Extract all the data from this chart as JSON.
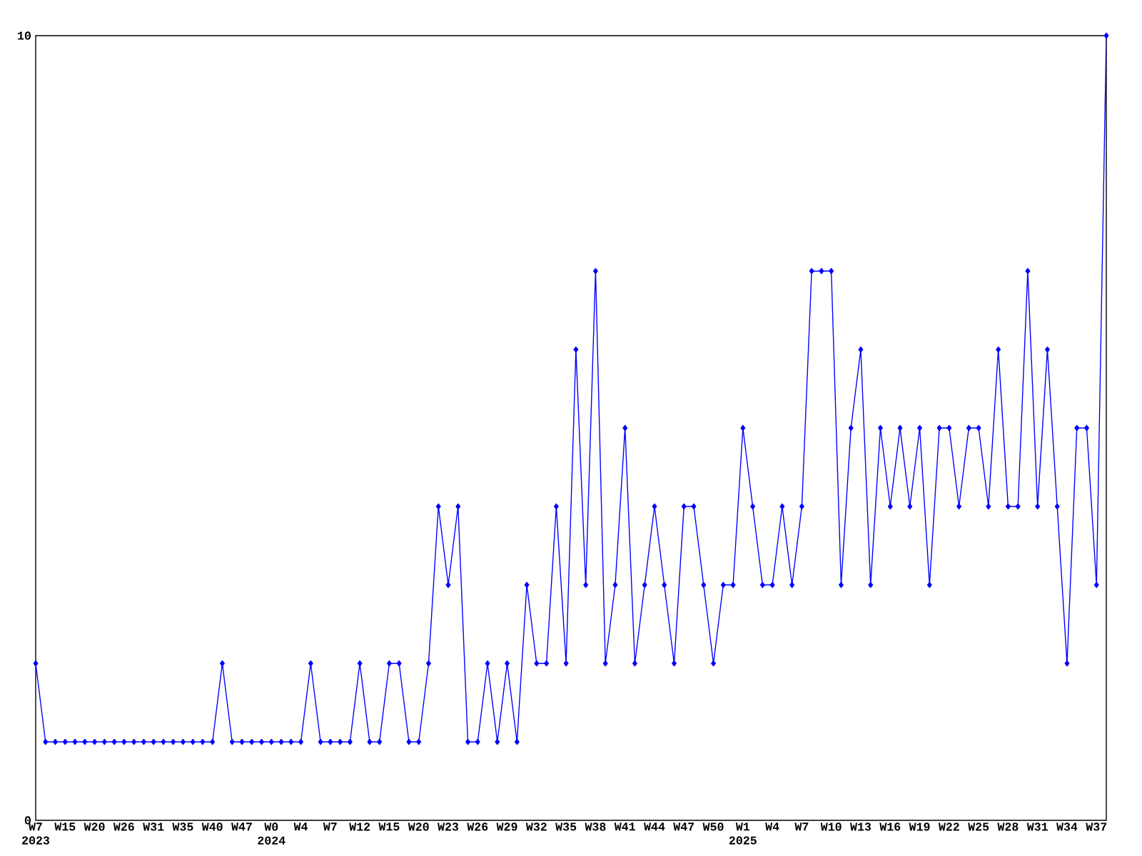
{
  "chart_data": {
    "type": "line",
    "categories": [
      "W7 2023",
      null,
      null,
      "W15",
      null,
      null,
      "W20",
      null,
      null,
      "W26",
      null,
      null,
      "W31",
      null,
      null,
      "W35",
      null,
      null,
      "W40",
      null,
      null,
      "W47",
      null,
      null,
      "W0 2024",
      null,
      null,
      "W4",
      null,
      null,
      "W7",
      null,
      null,
      "W12",
      null,
      null,
      "W15",
      null,
      null,
      "W20",
      null,
      null,
      "W23",
      null,
      null,
      "W26",
      null,
      null,
      "W29",
      null,
      null,
      "W32",
      null,
      null,
      "W35",
      null,
      null,
      "W38",
      null,
      null,
      "W41",
      null,
      null,
      "W44",
      null,
      null,
      "W47",
      null,
      null,
      "W50",
      null,
      null,
      "W1 2025",
      null,
      null,
      "W4",
      null,
      null,
      "W7",
      null,
      null,
      "W10",
      null,
      null,
      "W13",
      null,
      null,
      "W16",
      null,
      null,
      "W19",
      null,
      null,
      "W22",
      null,
      null,
      "W25",
      null,
      null,
      "W28",
      null,
      null,
      "W31",
      null,
      null,
      "W34",
      null,
      null,
      "W37",
      null
    ],
    "values": [
      2,
      1,
      1,
      1,
      1,
      1,
      1,
      1,
      1,
      1,
      1,
      1,
      1,
      1,
      1,
      1,
      1,
      1,
      1,
      2,
      1,
      1,
      1,
      1,
      1,
      1,
      1,
      1,
      2,
      1,
      1,
      1,
      1,
      2,
      1,
      1,
      2,
      2,
      1,
      1,
      2,
      4,
      3,
      4,
      1,
      1,
      2,
      1,
      2,
      1,
      3,
      2,
      2,
      4,
      2,
      6,
      3,
      7,
      2,
      3,
      5,
      2,
      3,
      4,
      3,
      2,
      4,
      4,
      3,
      2,
      3,
      3,
      5,
      4,
      3,
      3,
      4,
      3,
      4,
      7,
      7,
      7,
      3,
      5,
      6,
      3,
      5,
      4,
      5,
      4,
      5,
      3,
      5,
      5,
      4,
      5,
      5,
      4,
      6,
      4,
      4,
      7,
      4,
      6,
      4,
      2,
      5,
      5,
      3,
      10
    ],
    "color": "#0000ff",
    "marker": "diamond",
    "ylim": [
      0,
      10
    ],
    "yticks": [
      0,
      10
    ],
    "grid": false
  }
}
